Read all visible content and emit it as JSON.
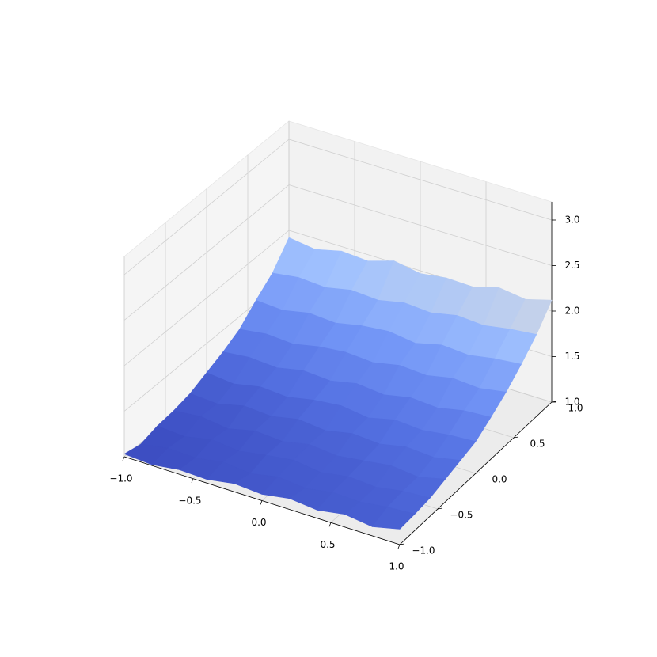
{
  "chart_data": {
    "type": "surface3d",
    "colormap": "coolwarm",
    "grid": true,
    "x": [
      -1,
      -0.8,
      -0.6,
      -0.4,
      -0.2,
      0,
      0.2,
      0.4,
      0.6,
      0.8,
      1
    ],
    "y": [
      -1,
      -0.8,
      -0.6,
      -0.4,
      -0.2,
      0,
      0.2,
      0.4,
      0.6,
      0.8,
      1
    ],
    "z": [
      [
        1.03,
        1.01,
        1.05,
        1.04,
        1.09,
        1.07,
        1.12,
        1.09,
        1.14,
        1.1,
        1.17
      ],
      [
        0.99,
        1.04,
        1.03,
        1.08,
        1.05,
        1.11,
        1.08,
        1.13,
        1.12,
        1.16,
        1.18
      ],
      [
        1.04,
        1.02,
        1.08,
        1.05,
        1.1,
        1.14,
        1.1,
        1.15,
        1.13,
        1.18,
        1.2
      ],
      [
        1.06,
        1.09,
        1.05,
        1.12,
        1.1,
        1.16,
        1.13,
        1.17,
        1.21,
        1.18,
        1.25
      ],
      [
        1.1,
        1.08,
        1.15,
        1.13,
        1.19,
        1.16,
        1.22,
        1.2,
        1.26,
        1.24,
        1.3
      ],
      [
        1.18,
        1.15,
        1.21,
        1.19,
        1.25,
        1.28,
        1.24,
        1.31,
        1.29,
        1.33,
        1.35
      ],
      [
        1.26,
        1.29,
        1.27,
        1.33,
        1.31,
        1.37,
        1.34,
        1.4,
        1.38,
        1.44,
        1.46
      ],
      [
        1.36,
        1.4,
        1.38,
        1.44,
        1.47,
        1.45,
        1.51,
        1.49,
        1.55,
        1.53,
        1.58
      ],
      [
        1.53,
        1.51,
        1.57,
        1.55,
        1.61,
        1.64,
        1.6,
        1.67,
        1.65,
        1.7,
        1.73
      ],
      [
        1.68,
        1.72,
        1.7,
        1.76,
        1.74,
        1.8,
        1.78,
        1.84,
        1.82,
        1.87,
        1.9
      ],
      [
        1.92,
        1.88,
        1.95,
        1.93,
        2.02,
        1.97,
        2.01,
        2.0,
        2.08,
        2.04,
        2.12
      ]
    ],
    "xlim": [
      -1,
      1
    ],
    "ylim": [
      -1,
      1
    ],
    "zlim": [
      1.0,
      3.2
    ],
    "xticks": [
      {
        "value": -1,
        "label": "−1.0"
      },
      {
        "value": -0.5,
        "label": "−0.5"
      },
      {
        "value": 0,
        "label": "0.0"
      },
      {
        "value": 0.5,
        "label": "0.5"
      },
      {
        "value": 1,
        "label": "1.0"
      }
    ],
    "yticks": [
      {
        "value": -1,
        "label": "−1.0"
      },
      {
        "value": -0.5,
        "label": "−0.5"
      },
      {
        "value": 0,
        "label": "0.0"
      },
      {
        "value": 0.5,
        "label": "0.5"
      },
      {
        "value": 1,
        "label": "1.0"
      }
    ],
    "zticks": [
      {
        "value": 1,
        "label": "1.0"
      },
      {
        "value": 1.5,
        "label": "1.5"
      },
      {
        "value": 2,
        "label": "2.0"
      },
      {
        "value": 2.5,
        "label": "2.5"
      },
      {
        "value": 3,
        "label": "3.0"
      }
    ]
  }
}
